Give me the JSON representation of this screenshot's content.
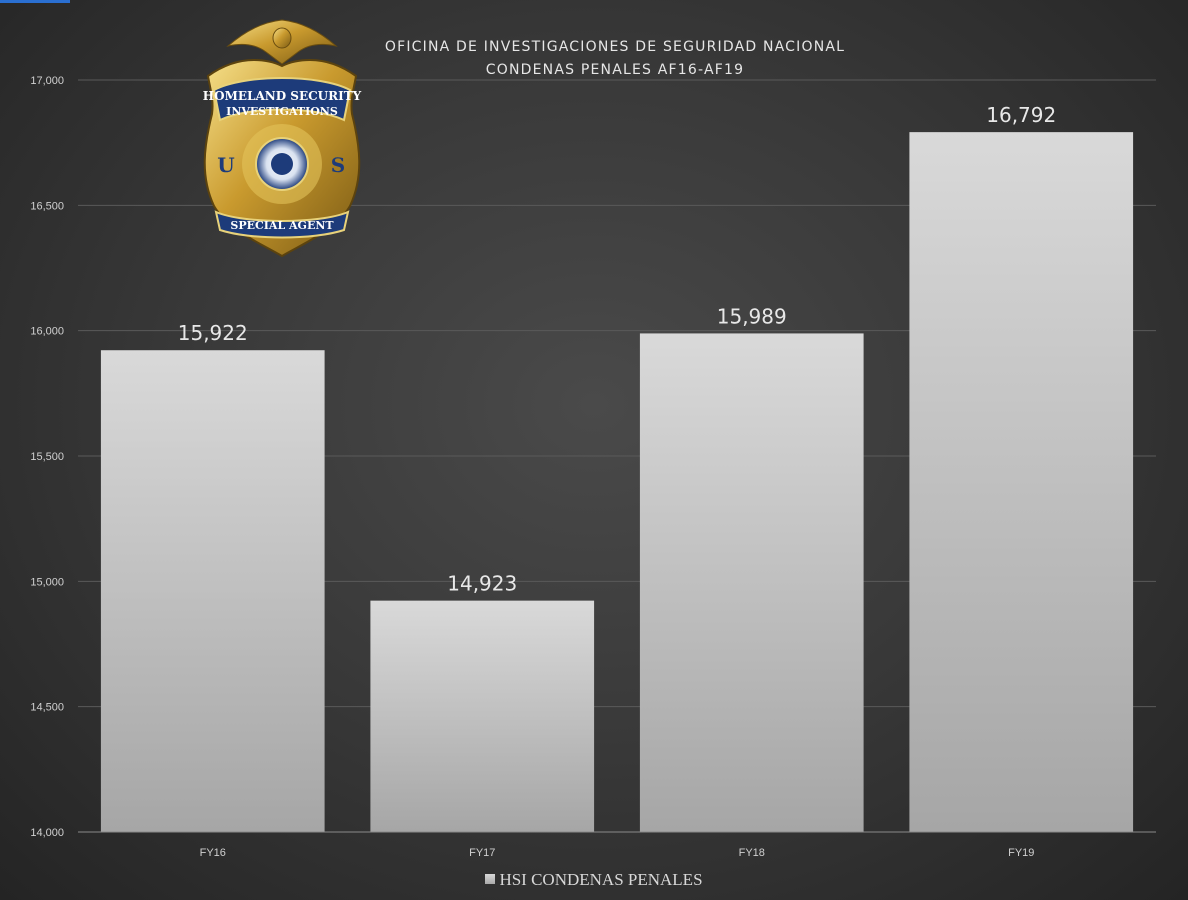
{
  "chart_data": {
    "type": "bar",
    "title": "OFICINA DE INVESTIGACIONES DE SEGURIDAD NACIONAL",
    "subtitle": "CONDENAS PENALES AF16-AF19",
    "categories": [
      "FY16",
      "FY17",
      "FY18",
      "FY19"
    ],
    "series": [
      {
        "name": "HSI CONDENAS PENALES",
        "values": [
          15922,
          14923,
          15989,
          16792
        ]
      }
    ],
    "data_labels": [
      "15,922",
      "14,923",
      "15,989",
      "16,792"
    ],
    "ylim": [
      14000,
      17000
    ],
    "yticks": [
      14000,
      14500,
      15000,
      15500,
      16000,
      16500,
      17000
    ],
    "ytick_labels": [
      "14,000",
      "14,500",
      "15,000",
      "15,500",
      "16,000",
      "16,500",
      "17,000"
    ],
    "grid": true,
    "legend_position": "bottom",
    "colors": {
      "bar_top": "#d9d9d9",
      "bar_bottom": "#a6a6a6",
      "background": "#3a3a3a",
      "text": "#e6e6e6"
    }
  },
  "badge": {
    "icon": "hsi-special-agent-badge-icon",
    "top_text": "HOMELAND SECURITY",
    "middle_text": "INVESTIGATIONS",
    "left_letter": "U",
    "right_letter": "S",
    "bottom_text": "SPECIAL AGENT"
  }
}
